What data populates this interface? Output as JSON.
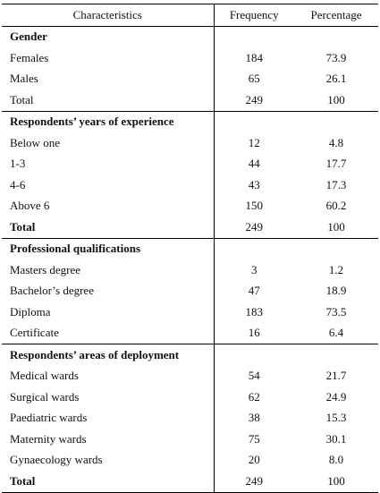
{
  "header": {
    "characteristics": "Characteristics",
    "frequency": "Frequency",
    "percentage": "Percentage"
  },
  "sections": [
    {
      "title": "Gender",
      "rows": [
        {
          "label": "Females",
          "frequency": "184",
          "percentage": "73.9"
        },
        {
          "label": "Males",
          "frequency": "65",
          "percentage": "26.1"
        },
        {
          "label": "Total",
          "frequency": "249",
          "percentage": "100"
        }
      ]
    },
    {
      "title": "Respondents’ years of experience",
      "rows": [
        {
          "label": "Below one",
          "frequency": "12",
          "percentage": "4.8"
        },
        {
          "label": "1-3",
          "frequency": "44",
          "percentage": "17.7"
        },
        {
          "label": "4-6",
          "frequency": "43",
          "percentage": "17.3"
        },
        {
          "label": "Above 6",
          "frequency": "150",
          "percentage": "60.2"
        },
        {
          "label": "Total",
          "frequency": "249",
          "percentage": "100"
        }
      ]
    },
    {
      "title": "Professional qualifications",
      "rows": [
        {
          "label": "Masters degree",
          "frequency": "3",
          "percentage": "1.2"
        },
        {
          "label": "Bachelor’s degree",
          "frequency": "47",
          "percentage": "18.9"
        },
        {
          "label": "Diploma",
          "frequency": "183",
          "percentage": "73.5"
        },
        {
          "label": "Certificate",
          "frequency": "16",
          "percentage": "6.4"
        }
      ]
    },
    {
      "title": "Respondents’ areas of deployment",
      "rows": [
        {
          "label": "Medical wards",
          "frequency": "54",
          "percentage": "21.7"
        },
        {
          "label": "Surgical wards",
          "frequency": "62",
          "percentage": "24.9"
        },
        {
          "label": "Paediatric wards",
          "frequency": "38",
          "percentage": "15.3"
        },
        {
          "label": "Maternity wards",
          "frequency": "75",
          "percentage": "30.1"
        },
        {
          "label": "Gynaecology wards",
          "frequency": "20",
          "percentage": "8.0"
        },
        {
          "label": "Total",
          "frequency": "249",
          "percentage": "100"
        }
      ]
    }
  ]
}
